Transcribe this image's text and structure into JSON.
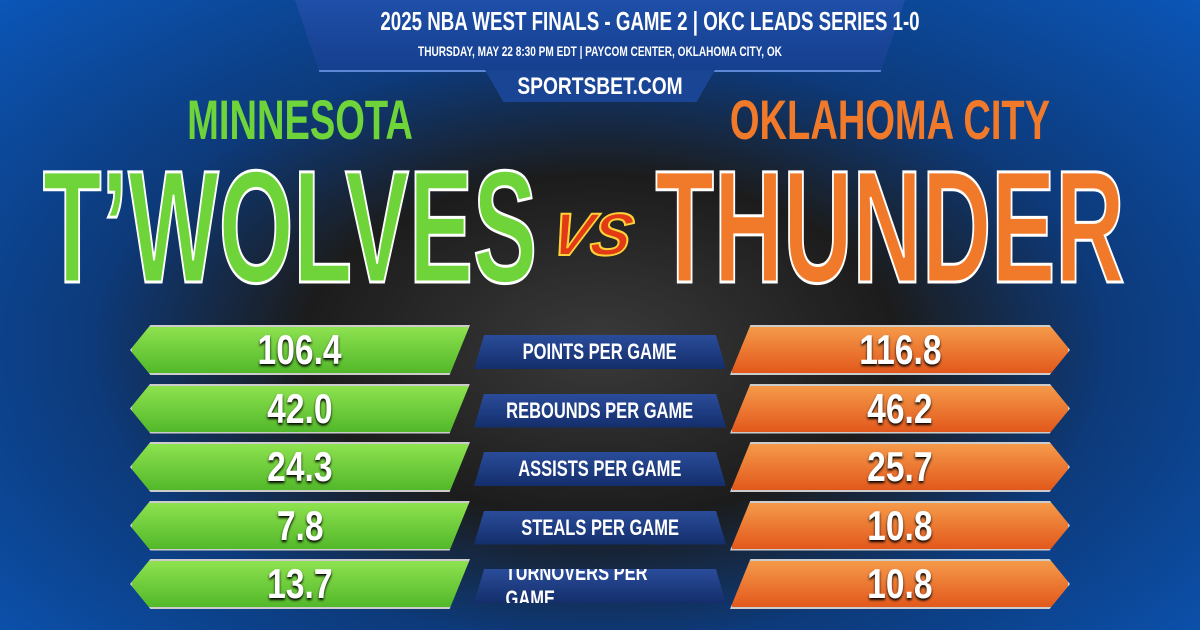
{
  "header": {
    "title": "2025 NBA WEST FINALS - GAME 2  |  OKC LEADS SERIES 1-0",
    "subtitle": "THURSDAY, MAY 22 8:30 PM EDT  |  PAYCOM CENTER, OKLAHOMA CITY, OK",
    "brand": "SPORTSBET.COM"
  },
  "teams": {
    "left": {
      "city": "MINNESOTA",
      "name": "T’WOLVES",
      "color": "#6fd43a"
    },
    "versus": "VS",
    "right": {
      "city": "OKLAHOMA CITY",
      "name": "THUNDER",
      "color": "#f07a2a"
    }
  },
  "stats": [
    {
      "label": "POINTS PER GAME",
      "left": "106.4",
      "right": "116.8"
    },
    {
      "label": "REBOUNDS PER GAME",
      "left": "42.0",
      "right": "46.2"
    },
    {
      "label": "ASSISTS PER GAME",
      "left": "24.3",
      "right": "25.7"
    },
    {
      "label": "STEALS PER GAME",
      "left": "7.8",
      "right": "10.8"
    },
    {
      "label": "TURNOVERS PER GAME",
      "left": "13.7",
      "right": "10.8"
    }
  ]
}
